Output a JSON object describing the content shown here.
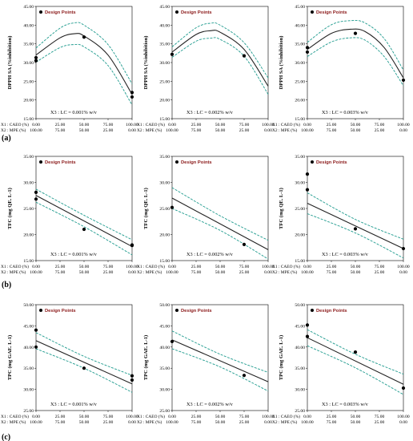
{
  "colors": {
    "fit": "#222222",
    "ci": "#1f9b8e",
    "point": "#000000",
    "legend_text": "#8b1a1a"
  },
  "row_labels": [
    "(a)",
    "(b)",
    "(c)"
  ],
  "x_axis": {
    "name1": "X1 : CAEO (%)",
    "name2": "X2 : MPE (%)",
    "x1_ticks": [
      "0.00",
      "25.00",
      "50.00",
      "75.00",
      "100.00"
    ],
    "x2_ticks": [
      "100.00",
      "75.00",
      "50.00",
      "25.00",
      "0.00"
    ]
  },
  "chart_data": [
    {
      "id": "a1",
      "type": "scatter",
      "legend": "Design Points",
      "ylabel": "DPPH SA (%inhibition)",
      "note": "X3 : LC = 0.001% w/v",
      "ylim": [
        15,
        45
      ],
      "yticks": [
        "15.00",
        "20.00",
        "25.00",
        "30.00",
        "35.00",
        "40.00",
        "45.00"
      ],
      "points": [
        [
          0,
          30.5
        ],
        [
          0,
          31.3
        ],
        [
          50,
          36.8
        ],
        [
          100,
          20.8
        ],
        [
          100,
          22.0
        ]
      ],
      "fit": [
        [
          0,
          32.0
        ],
        [
          25,
          36.6
        ],
        [
          40,
          37.7
        ],
        [
          50,
          37.1
        ],
        [
          75,
          32.0
        ],
        [
          100,
          21.5
        ]
      ],
      "upper": [
        [
          0,
          33.9
        ],
        [
          25,
          39.2
        ],
        [
          40,
          40.6
        ],
        [
          50,
          40.0
        ],
        [
          75,
          34.8
        ],
        [
          100,
          24.3
        ]
      ],
      "lower": [
        [
          0,
          30.1
        ],
        [
          25,
          34.0
        ],
        [
          40,
          34.8
        ],
        [
          50,
          34.2
        ],
        [
          75,
          29.2
        ],
        [
          100,
          18.7
        ]
      ]
    },
    {
      "id": "a2",
      "type": "scatter",
      "legend": "Design Points",
      "ylabel": "DPPH SA (%inhibition)",
      "note": "X3 : LC = 0.002% w/v",
      "ylim": [
        15,
        45
      ],
      "yticks": [
        "15.00",
        "20.00",
        "25.00",
        "30.00",
        "35.00",
        "40.00",
        "45.00"
      ],
      "points": [
        [
          0,
          32.2
        ],
        [
          75,
          31.8
        ]
      ],
      "fit": [
        [
          0,
          32.8
        ],
        [
          25,
          37.5
        ],
        [
          40,
          38.5
        ],
        [
          50,
          38.1
        ],
        [
          75,
          33.5
        ],
        [
          100,
          23.7
        ]
      ],
      "upper": [
        [
          0,
          34.2
        ],
        [
          25,
          39.3
        ],
        [
          40,
          40.5
        ],
        [
          50,
          40.0
        ],
        [
          75,
          35.3
        ],
        [
          100,
          25.9
        ]
      ],
      "lower": [
        [
          0,
          31.4
        ],
        [
          25,
          35.7
        ],
        [
          40,
          36.5
        ],
        [
          50,
          36.2
        ],
        [
          75,
          31.7
        ],
        [
          100,
          21.5
        ]
      ]
    },
    {
      "id": "a3",
      "type": "scatter",
      "legend": "Design Points",
      "ylabel": "DPPH SA (%inhibition)",
      "note": "X3 : LC = 0.003% w/v",
      "ylim": [
        15,
        45
      ],
      "yticks": [
        "15.00",
        "20.00",
        "25.00",
        "30.00",
        "35.00",
        "40.00",
        "45.00"
      ],
      "points": [
        [
          0,
          32.8
        ],
        [
          0,
          34.0
        ],
        [
          50,
          37.8
        ],
        [
          100,
          25.3
        ]
      ],
      "fit": [
        [
          0,
          33.5
        ],
        [
          25,
          37.8
        ],
        [
          45,
          38.9
        ],
        [
          60,
          38.3
        ],
        [
          80,
          34.0
        ],
        [
          100,
          25.9
        ]
      ],
      "upper": [
        [
          0,
          35.4
        ],
        [
          25,
          40.1
        ],
        [
          45,
          41.2
        ],
        [
          60,
          40.6
        ],
        [
          80,
          36.4
        ],
        [
          100,
          28.0
        ]
      ],
      "lower": [
        [
          0,
          31.6
        ],
        [
          25,
          35.5
        ],
        [
          45,
          36.6
        ],
        [
          60,
          36.0
        ],
        [
          80,
          31.6
        ],
        [
          100,
          23.8
        ]
      ]
    },
    {
      "id": "b1",
      "type": "scatter",
      "legend": "Design Points",
      "ylabel": "TFC (mg QE. L-1)",
      "note": "X3 : LC = 0.001% w/v",
      "ylim": [
        15,
        35
      ],
      "yticks": [
        "15.00",
        "20.00",
        "25.00",
        "30.00",
        "35.00"
      ],
      "points": [
        [
          0,
          26.8
        ],
        [
          0,
          28.1
        ],
        [
          50,
          21.0
        ],
        [
          100,
          18.0
        ],
        [
          100,
          17.9
        ]
      ],
      "fit": [
        [
          0,
          27.5
        ],
        [
          100,
          17.7
        ]
      ],
      "upper": [
        [
          0,
          28.7
        ],
        [
          50,
          23.7
        ],
        [
          100,
          19.0
        ]
      ],
      "lower": [
        [
          0,
          26.2
        ],
        [
          50,
          21.5
        ],
        [
          100,
          16.1
        ]
      ]
    },
    {
      "id": "b2",
      "type": "scatter",
      "legend": "Design Points",
      "ylabel": "TFC (mg QE. L-1)",
      "note": "X3 : LC = 0.002% w/v",
      "ylim": [
        15,
        35
      ],
      "yticks": [
        "15.00",
        "20.00",
        "25.00",
        "30.00",
        "35.00"
      ],
      "points": [
        [
          0,
          25.2
        ],
        [
          75,
          18.1
        ]
      ],
      "fit": [
        [
          0,
          27.0
        ],
        [
          100,
          17.1
        ]
      ],
      "upper": [
        [
          0,
          29.0
        ],
        [
          50,
          23.6
        ],
        [
          100,
          18.9
        ]
      ],
      "lower": [
        [
          0,
          25.0
        ],
        [
          50,
          20.8
        ],
        [
          100,
          15.3
        ]
      ]
    },
    {
      "id": "b3",
      "type": "scatter",
      "legend": "Design Points",
      "ylabel": "TFC (mg QE. L-1)",
      "note": "X3 : LC = 0.003% w/v",
      "ylim": [
        15,
        35
      ],
      "yticks": [
        "15.00",
        "20.00",
        "25.00",
        "30.00",
        "35.00"
      ],
      "points": [
        [
          0,
          28.6
        ],
        [
          0,
          31.6
        ],
        [
          50,
          21.1
        ],
        [
          100,
          17.3
        ]
      ],
      "fit": [
        [
          0,
          26.0
        ],
        [
          100,
          17.3
        ]
      ],
      "upper": [
        [
          0,
          28.0
        ],
        [
          50,
          22.9
        ],
        [
          100,
          19.1
        ]
      ],
      "lower": [
        [
          0,
          24.0
        ],
        [
          50,
          20.3
        ],
        [
          100,
          15.5
        ]
      ]
    },
    {
      "id": "c1",
      "type": "scatter",
      "legend": "Design Points",
      "ylabel": "TPC (mg GAE. L-1)",
      "note": "X3 : LC = 0.001% w/v",
      "ylim": [
        25,
        50
      ],
      "yticks": [
        "25.00",
        "30.00",
        "35.00",
        "40.00",
        "45.00",
        "50.00"
      ],
      "points": [
        [
          0,
          44.0
        ],
        [
          0,
          40.0
        ],
        [
          50,
          35.0
        ],
        [
          100,
          32.2
        ],
        [
          100,
          33.2
        ]
      ],
      "fit": [
        [
          0,
          41.5
        ],
        [
          100,
          31.3
        ]
      ],
      "upper": [
        [
          0,
          43.4
        ],
        [
          50,
          37.8
        ],
        [
          100,
          33.3
        ]
      ],
      "lower": [
        [
          0,
          39.6
        ],
        [
          50,
          35.0
        ],
        [
          100,
          29.3
        ]
      ]
    },
    {
      "id": "c2",
      "type": "scatter",
      "legend": "Design Points",
      "ylabel": "TPC (mg GAE. L-1)",
      "note": "X3 : LC = 0.002% w/v",
      "ylim": [
        25,
        50
      ],
      "yticks": [
        "25.00",
        "30.00",
        "35.00",
        "40.00",
        "45.00",
        "50.00"
      ],
      "points": [
        [
          0,
          41.3
        ],
        [
          75,
          33.3
        ]
      ],
      "fit": [
        [
          0,
          41.7
        ],
        [
          100,
          31.8
        ]
      ],
      "upper": [
        [
          0,
          43.8
        ],
        [
          50,
          38.3
        ],
        [
          100,
          34.0
        ]
      ],
      "lower": [
        [
          0,
          39.6
        ],
        [
          50,
          35.3
        ],
        [
          100,
          29.6
        ]
      ]
    },
    {
      "id": "c3",
      "type": "scatter",
      "legend": "Design Points",
      "ylabel": "TPC (mg GAE. L-1)",
      "note": "X3 : LC = 0.003% w/v",
      "ylim": [
        25,
        50
      ],
      "yticks": [
        "25.00",
        "30.00",
        "35.00",
        "40.00",
        "45.00",
        "50.00"
      ],
      "points": [
        [
          0,
          45.2
        ],
        [
          0,
          42.5
        ],
        [
          50,
          38.8
        ],
        [
          100,
          30.3
        ]
      ],
      "fit": [
        [
          0,
          42.2
        ],
        [
          100,
          31.2
        ]
      ],
      "upper": [
        [
          0,
          44.1
        ],
        [
          50,
          38.3
        ],
        [
          100,
          33.6
        ]
      ],
      "lower": [
        [
          0,
          40.3
        ],
        [
          50,
          35.1
        ],
        [
          100,
          28.8
        ]
      ]
    }
  ]
}
